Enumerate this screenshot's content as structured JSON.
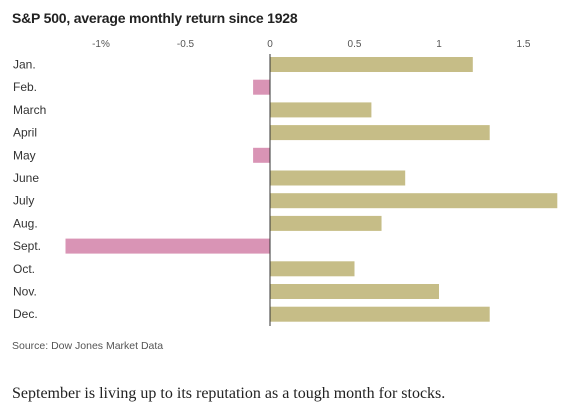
{
  "chart_data": {
    "type": "bar",
    "orientation": "horizontal",
    "title": "S&P 500, average monthly return since 1928",
    "xlabel": "",
    "ylabel": "",
    "xlim": [
      -1.2,
      1.7
    ],
    "xticks": [
      {
        "value": -1,
        "label": "-1%"
      },
      {
        "value": -0.5,
        "label": "-0.5"
      },
      {
        "value": 0,
        "label": "0"
      },
      {
        "value": 0.5,
        "label": "0.5"
      },
      {
        "value": 1,
        "label": "1"
      },
      {
        "value": 1.5,
        "label": "1.5"
      }
    ],
    "categories": [
      "Jan.",
      "Feb.",
      "March",
      "April",
      "May",
      "June",
      "July",
      "Aug.",
      "Sept.",
      "Oct.",
      "Nov.",
      "Dec."
    ],
    "values": [
      1.2,
      -0.1,
      0.6,
      1.3,
      -0.1,
      0.8,
      1.7,
      0.66,
      -1.21,
      0.5,
      1.0,
      1.3
    ],
    "colors": {
      "positive": "#c6bd87",
      "negative": "#d994b5",
      "axis": "#333333"
    },
    "grid": false,
    "legend": "none"
  },
  "source": "Source: Dow Jones Market Data",
  "caption": "September is living up to its reputation as a tough month for stocks."
}
